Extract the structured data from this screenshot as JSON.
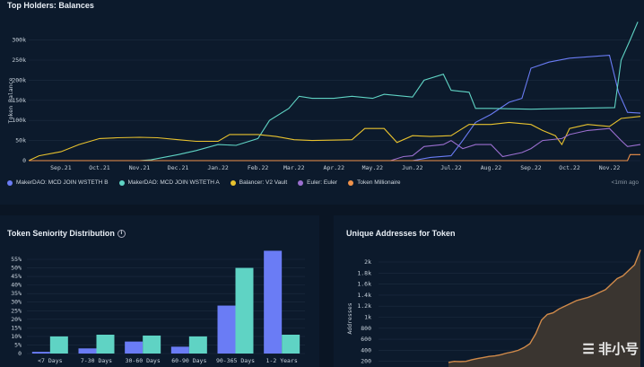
{
  "chart_data": [
    {
      "type": "line",
      "title": "Top Holders: Balances",
      "ylabel": "Token Balance",
      "ylim": [
        0,
        360000
      ],
      "yticks": [
        "0",
        "50k",
        "100k",
        "150k",
        "200k",
        "250k",
        "300k"
      ],
      "ytick_values": [
        0,
        50000,
        100000,
        150000,
        200000,
        250000,
        300000
      ],
      "xticks": [
        "Sep.21",
        "Oct.21",
        "Nov.21",
        "Dec.21",
        "Jan.22",
        "Feb.22",
        "Mar.22",
        "Apr.22",
        "May.22",
        "Jun.22",
        "Jul.22",
        "Aug.22",
        "Sep.22",
        "Oct.22",
        "Nov.22"
      ],
      "xtick_dates": [
        "2021-09-01",
        "2021-10-01",
        "2021-11-01",
        "2021-12-01",
        "2022-01-01",
        "2022-02-01",
        "2022-03-01",
        "2022-04-01",
        "2022-05-01",
        "2022-06-01",
        "2022-07-01",
        "2022-08-01",
        "2022-09-01",
        "2022-10-01",
        "2022-11-01"
      ],
      "xlim": [
        "2021-08-07",
        "2022-11-25"
      ],
      "grid": true,
      "legend": "bottom",
      "updated": "<1min ago",
      "series": [
        {
          "name": "MakerDAO: MCD JOIN WSTETH B",
          "color": "#6a7cf5",
          "points": [
            [
              "2021-08-07",
              0
            ],
            [
              "2022-06-01",
              0
            ],
            [
              "2022-06-15",
              8000
            ],
            [
              "2022-07-01",
              12000
            ],
            [
              "2022-07-10",
              50000
            ],
            [
              "2022-07-20",
              95000
            ],
            [
              "2022-08-01",
              115000
            ],
            [
              "2022-08-15",
              145000
            ],
            [
              "2022-08-25",
              155000
            ],
            [
              "2022-09-01",
              230000
            ],
            [
              "2022-09-15",
              245000
            ],
            [
              "2022-10-01",
              255000
            ],
            [
              "2022-11-01",
              262000
            ],
            [
              "2022-11-08",
              170000
            ],
            [
              "2022-11-15",
              120000
            ],
            [
              "2022-11-25",
              118000
            ]
          ]
        },
        {
          "name": "MakerDAO: MCD JOIN WSTETH A",
          "color": "#5fd3c4",
          "points": [
            [
              "2021-08-07",
              0
            ],
            [
              "2021-11-01",
              0
            ],
            [
              "2021-11-10",
              2000
            ],
            [
              "2021-12-01",
              15000
            ],
            [
              "2021-12-15",
              25000
            ],
            [
              "2022-01-01",
              40000
            ],
            [
              "2022-01-15",
              38000
            ],
            [
              "2022-02-01",
              55000
            ],
            [
              "2022-02-10",
              100000
            ],
            [
              "2022-02-25",
              130000
            ],
            [
              "2022-03-05",
              160000
            ],
            [
              "2022-03-15",
              155000
            ],
            [
              "2022-04-01",
              155000
            ],
            [
              "2022-04-15",
              160000
            ],
            [
              "2022-05-01",
              155000
            ],
            [
              "2022-05-10",
              165000
            ],
            [
              "2022-06-01",
              158000
            ],
            [
              "2022-06-10",
              200000
            ],
            [
              "2022-06-25",
              215000
            ],
            [
              "2022-07-01",
              175000
            ],
            [
              "2022-07-15",
              170000
            ],
            [
              "2022-07-20",
              130000
            ],
            [
              "2022-08-01",
              130000
            ],
            [
              "2022-09-01",
              128000
            ],
            [
              "2022-10-01",
              130000
            ],
            [
              "2022-11-05",
              132000
            ],
            [
              "2022-11-10",
              250000
            ],
            [
              "2022-11-17",
              300000
            ],
            [
              "2022-11-23",
              345000
            ]
          ]
        },
        {
          "name": "Balancer: V2 Vault",
          "color": "#e8c22e",
          "points": [
            [
              "2021-08-07",
              0
            ],
            [
              "2021-08-15",
              12000
            ],
            [
              "2021-09-01",
              22000
            ],
            [
              "2021-09-15",
              40000
            ],
            [
              "2021-10-01",
              55000
            ],
            [
              "2021-10-15",
              57000
            ],
            [
              "2021-11-01",
              58000
            ],
            [
              "2021-11-15",
              57000
            ],
            [
              "2021-12-01",
              52000
            ],
            [
              "2021-12-15",
              48000
            ],
            [
              "2022-01-01",
              48000
            ],
            [
              "2022-01-10",
              65000
            ],
            [
              "2022-02-01",
              65000
            ],
            [
              "2022-02-15",
              60000
            ],
            [
              "2022-03-01",
              52000
            ],
            [
              "2022-03-15",
              50000
            ],
            [
              "2022-04-15",
              52000
            ],
            [
              "2022-04-25",
              80000
            ],
            [
              "2022-05-10",
              80000
            ],
            [
              "2022-05-20",
              45000
            ],
            [
              "2022-06-01",
              62000
            ],
            [
              "2022-06-15",
              60000
            ],
            [
              "2022-07-01",
              62000
            ],
            [
              "2022-07-15",
              90000
            ],
            [
              "2022-08-01",
              90000
            ],
            [
              "2022-08-15",
              95000
            ],
            [
              "2022-09-01",
              90000
            ],
            [
              "2022-09-10",
              75000
            ],
            [
              "2022-09-20",
              62000
            ],
            [
              "2022-09-25",
              40000
            ],
            [
              "2022-10-01",
              80000
            ],
            [
              "2022-10-15",
              90000
            ],
            [
              "2022-11-01",
              85000
            ],
            [
              "2022-11-10",
              105000
            ],
            [
              "2022-11-25",
              110000
            ]
          ]
        },
        {
          "name": "Euler: Euler",
          "color": "#9b6fd0",
          "points": [
            [
              "2021-08-07",
              0
            ],
            [
              "2022-05-15",
              0
            ],
            [
              "2022-05-25",
              10000
            ],
            [
              "2022-06-01",
              12000
            ],
            [
              "2022-06-10",
              35000
            ],
            [
              "2022-06-25",
              40000
            ],
            [
              "2022-07-01",
              50000
            ],
            [
              "2022-07-10",
              30000
            ],
            [
              "2022-07-20",
              40000
            ],
            [
              "2022-08-01",
              40000
            ],
            [
              "2022-08-10",
              10000
            ],
            [
              "2022-08-25",
              20000
            ],
            [
              "2022-09-01",
              30000
            ],
            [
              "2022-09-10",
              50000
            ],
            [
              "2022-09-25",
              55000
            ],
            [
              "2022-10-01",
              65000
            ],
            [
              "2022-10-15",
              75000
            ],
            [
              "2022-11-01",
              80000
            ],
            [
              "2022-11-10",
              50000
            ],
            [
              "2022-11-15",
              35000
            ],
            [
              "2022-11-25",
              40000
            ]
          ]
        },
        {
          "name": "Token Millionaire",
          "color": "#f0924a",
          "points": [
            [
              "2021-08-07",
              0
            ],
            [
              "2022-11-15",
              0
            ],
            [
              "2022-11-17",
              15000
            ],
            [
              "2022-11-25",
              15000
            ]
          ]
        }
      ]
    },
    {
      "type": "bar",
      "title": "Token Seniority Distribution",
      "categories": [
        "<7 Days",
        "7-30 Days",
        "30-60 Days",
        "60-90 Days",
        "90-365 Days",
        "1-2 Years"
      ],
      "yticks": [
        "0",
        "5%",
        "10%",
        "15%",
        "20%",
        "25%",
        "30%",
        "35%",
        "40%",
        "45%",
        "50%",
        "55%"
      ],
      "ylim": [
        0,
        60
      ],
      "grid": true,
      "series": [
        {
          "color": "#6a7cf5",
          "values": [
            1,
            3,
            7,
            4,
            28,
            60
          ]
        },
        {
          "color": "#5fd3c4",
          "values": [
            10,
            11,
            10.5,
            10,
            50,
            11
          ]
        }
      ]
    },
    {
      "type": "area",
      "title": "Unique Addresses for Token",
      "ylabel": "Addresses",
      "yticks": [
        "200",
        "400",
        "600",
        "800",
        "1k",
        "1.2k",
        "1.4k",
        "1.6k",
        "1.8k",
        "2k"
      ],
      "ylim": [
        0,
        2200
      ],
      "grid": true,
      "color": "#d08a4a",
      "values": [
        180,
        200,
        195,
        200,
        230,
        250,
        270,
        290,
        300,
        320,
        350,
        370,
        400,
        450,
        520,
        700,
        950,
        1050,
        1080,
        1150,
        1200,
        1250,
        1300,
        1330,
        1360,
        1400,
        1450,
        1500,
        1600,
        1700,
        1750,
        1850,
        1950,
        2220
      ]
    }
  ],
  "watermark": "非小号"
}
